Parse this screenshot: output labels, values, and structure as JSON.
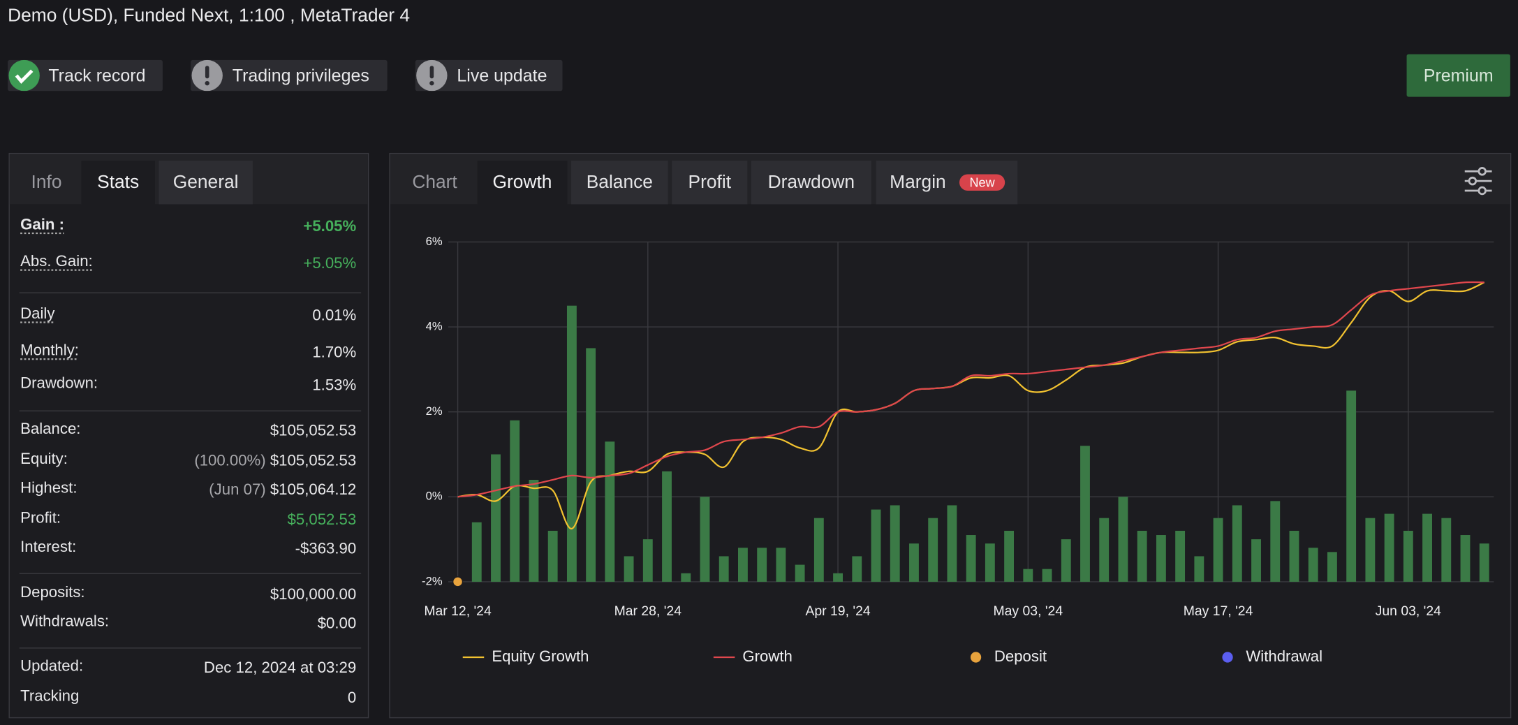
{
  "header": {
    "title": "Demo (USD), Funded Next, 1:100 , MetaTrader 4",
    "badges": [
      "Track record",
      "Trading privileges",
      "Live update"
    ],
    "button": "Premium"
  },
  "stats": {
    "tabs": [
      "Info",
      "Stats",
      "General"
    ],
    "groups": [
      {
        "rows": [
          {
            "label": "Gain :",
            "value": "+5.05%"
          },
          {
            "label": "Abs. Gain:",
            "value": "+5.05%"
          }
        ]
      },
      {
        "rows": [
          {
            "label": "Daily",
            "value": "0.01%"
          },
          {
            "label": "Monthly:",
            "value": "1.70%"
          },
          {
            "label": "Drawdown:",
            "value": "1.53%"
          }
        ]
      },
      {
        "rows": [
          {
            "label": "Balance:",
            "value": "$105,052.53"
          },
          {
            "label": "Equity:",
            "note": "(100.00%)",
            "value": "$105,052.53"
          },
          {
            "label": "Highest:",
            "note": "(Jun 07)",
            "value": "$105,064.12"
          },
          {
            "label": "Profit:",
            "value": "$5,052.53"
          },
          {
            "label": "Interest:",
            "value": "-$363.90"
          }
        ]
      },
      {
        "rows": [
          {
            "label": "Deposits:",
            "value": "$100,000.00"
          },
          {
            "label": "Withdrawals:",
            "value": "$0.00"
          }
        ]
      },
      {
        "rows": [
          {
            "label": "Updated:",
            "value": "Dec 12, 2024 at 03:29"
          },
          {
            "label": "Tracking",
            "value": "0"
          }
        ]
      }
    ]
  },
  "chart_tabs": {
    "tabs": [
      "Chart",
      "Growth",
      "Balance",
      "Profit",
      "Drawdown",
      "Margin"
    ],
    "badge": "New"
  },
  "chart_data": {
    "type": "line",
    "categories": [
      "Mar 12, '24",
      null,
      null,
      null,
      null,
      null,
      null,
      null,
      null,
      null,
      "Mar 28, '24",
      null,
      null,
      null,
      null,
      null,
      null,
      null,
      null,
      null,
      "Apr 19, '24",
      null,
      null,
      null,
      null,
      null,
      null,
      null,
      null,
      null,
      "May 03, '24",
      null,
      null,
      null,
      null,
      null,
      null,
      null,
      null,
      null,
      "May 17, '24",
      null,
      null,
      null,
      null,
      null,
      null,
      null,
      null,
      null,
      "Jun 03, '24",
      null,
      null,
      null,
      null
    ],
    "ylim": [
      -2,
      6
    ],
    "yticks": [
      {
        "value": -2,
        "label": "-2%"
      },
      {
        "value": 0,
        "label": "0%"
      },
      {
        "value": 2,
        "label": "2%"
      },
      {
        "value": 4,
        "label": "4%"
      },
      {
        "value": 6,
        "label": "6%"
      }
    ],
    "grid": true,
    "bars": {
      "color": "#3b7a46",
      "values": [
        null,
        -0.6,
        1.0,
        1.8,
        0.4,
        -0.8,
        4.5,
        3.5,
        1.3,
        -1.4,
        -1.0,
        0.6,
        -1.8,
        0.0,
        -1.4,
        -1.2,
        -1.2,
        -1.2,
        -1.6,
        -0.5,
        -1.8,
        -1.4,
        -0.3,
        -0.2,
        -1.1,
        -0.5,
        -0.2,
        -0.9,
        -1.1,
        -0.8,
        -1.7,
        -1.7,
        -1.0,
        1.2,
        -0.5,
        0.0,
        -0.8,
        -0.9,
        -0.8,
        -1.4,
        -0.5,
        -0.2,
        -1.0,
        -0.1,
        -0.8,
        -1.2,
        -1.3,
        2.5,
        -0.5,
        -0.4,
        -0.8,
        -0.4,
        -0.5,
        -0.9,
        -1.1
      ]
    },
    "series": [
      {
        "name": "Equity Growth",
        "color": "#f2c230",
        "values": [
          0,
          0.05,
          -0.1,
          0.25,
          0.2,
          0.15,
          -0.75,
          0.35,
          0.5,
          0.6,
          0.6,
          1.0,
          1.05,
          1.0,
          0.7,
          1.3,
          1.4,
          1.35,
          1.15,
          1.15,
          2.0,
          2.0,
          2.05,
          2.2,
          2.5,
          2.55,
          2.6,
          2.8,
          2.8,
          2.85,
          2.5,
          2.5,
          2.75,
          3.05,
          3.1,
          3.15,
          3.3,
          3.4,
          3.4,
          3.4,
          3.45,
          3.65,
          3.7,
          3.75,
          3.6,
          3.55,
          3.55,
          4.1,
          4.7,
          4.85,
          4.6,
          4.85,
          4.85,
          4.85,
          5.05
        ]
      },
      {
        "name": "Growth",
        "color": "#e0474d",
        "values": [
          0,
          0.05,
          0.15,
          0.25,
          0.3,
          0.4,
          0.5,
          0.45,
          0.5,
          0.55,
          0.75,
          0.95,
          1.05,
          1.1,
          1.3,
          1.35,
          1.4,
          1.5,
          1.65,
          1.65,
          2.0,
          2.0,
          2.05,
          2.2,
          2.5,
          2.55,
          2.6,
          2.85,
          2.85,
          2.9,
          2.9,
          2.95,
          3.0,
          3.05,
          3.1,
          3.2,
          3.3,
          3.4,
          3.45,
          3.5,
          3.55,
          3.7,
          3.75,
          3.9,
          3.95,
          4.0,
          4.05,
          4.4,
          4.75,
          4.85,
          4.9,
          4.95,
          5.0,
          5.05,
          5.05
        ]
      }
    ],
    "points": [
      {
        "name": "Deposit",
        "color": "#e8a33d",
        "values": [
          -2,
          null,
          null,
          null,
          null,
          null,
          null,
          null,
          null,
          null,
          null,
          null,
          null,
          null,
          null,
          null,
          null,
          null,
          null,
          null,
          null,
          null,
          null,
          null,
          null,
          null,
          null,
          null,
          null,
          null,
          null,
          null,
          null,
          null,
          null,
          null,
          null,
          null,
          null,
          null,
          null,
          null,
          null,
          null,
          null,
          null,
          null,
          null,
          null,
          null,
          null,
          null,
          null,
          null,
          null
        ]
      },
      {
        "name": "Withdrawal",
        "color": "#5b5ef0",
        "values": [
          null,
          null,
          null,
          null,
          null,
          null,
          null,
          null,
          null,
          null,
          null,
          null,
          null,
          null,
          null,
          null,
          null,
          null,
          null,
          null,
          null,
          null,
          null,
          null,
          null,
          null,
          null,
          null,
          null,
          null,
          null,
          null,
          null,
          null,
          null,
          null,
          null,
          null,
          null,
          null,
          null,
          null,
          null,
          null,
          null,
          null,
          null,
          null,
          null,
          null,
          null,
          null,
          null,
          null,
          null
        ]
      }
    ]
  }
}
